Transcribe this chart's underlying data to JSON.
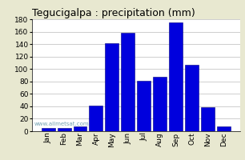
{
  "title": "Tegucigalpa : precipitation (mm)",
  "months": [
    "Jan",
    "Feb",
    "Mar",
    "Apr",
    "May",
    "Jun",
    "Jul",
    "Aug",
    "Sep",
    "Oct",
    "Nov",
    "Dec"
  ],
  "values": [
    5,
    5,
    8,
    41,
    142,
    158,
    81,
    88,
    175,
    107,
    39,
    8
  ],
  "bar_color": "#0000DD",
  "bar_edge_color": "#000080",
  "ylim": [
    0,
    180
  ],
  "yticks": [
    0,
    20,
    40,
    60,
    80,
    100,
    120,
    140,
    160,
    180
  ],
  "background_color": "#E8E8D0",
  "plot_bg_color": "#FFFFFF",
  "grid_color": "#BBBBBB",
  "title_fontsize": 9,
  "tick_fontsize": 6.5,
  "watermark": "www.allmetsat.com",
  "watermark_color": "#6699AA"
}
